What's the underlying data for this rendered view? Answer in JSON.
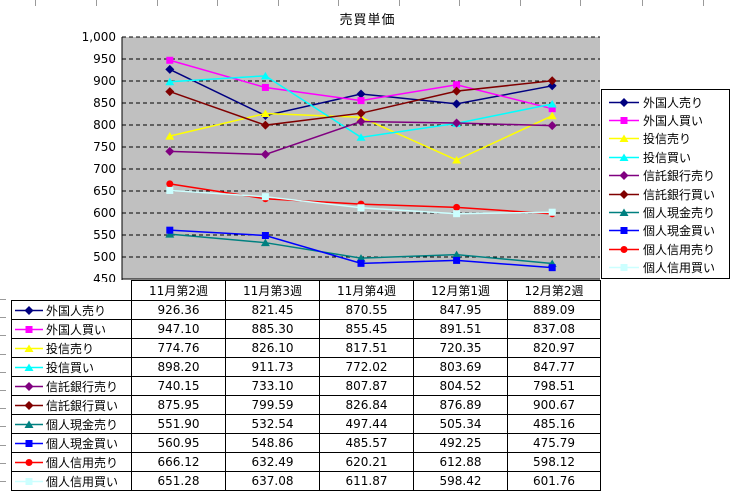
{
  "chart_data": {
    "type": "line",
    "title": "売買単価",
    "categories": [
      "11月第2週",
      "11月第3週",
      "11月第4週",
      "12月第1週",
      "12月第2週"
    ],
    "series": [
      {
        "name": "外国人売り",
        "color": "#000080",
        "marker": "diamond",
        "values": [
          926.36,
          821.45,
          870.55,
          847.95,
          889.09
        ],
        "values_text": [
          "926.36",
          "821.45",
          "870.55",
          "847.95",
          "889.09"
        ]
      },
      {
        "name": "外国人買い",
        "color": "#FF00FF",
        "marker": "square",
        "values": [
          947.1,
          885.3,
          855.45,
          891.51,
          837.08
        ],
        "values_text": [
          "947.10",
          "885.30",
          "855.45",
          "891.51",
          "837.08"
        ]
      },
      {
        "name": "投信売り",
        "color": "#FFFF00",
        "marker": "triangle",
        "values": [
          774.76,
          826.1,
          817.51,
          720.35,
          820.97
        ],
        "values_text": [
          "774.76",
          "826.10",
          "817.51",
          "720.35",
          "820.97"
        ]
      },
      {
        "name": "投信買い",
        "color": "#00FFFF",
        "marker": "triangle",
        "values": [
          898.2,
          911.73,
          772.02,
          803.69,
          847.77
        ],
        "values_text": [
          "898.20",
          "911.73",
          "772.02",
          "803.69",
          "847.77"
        ]
      },
      {
        "name": "信託銀行売り",
        "color": "#800080",
        "marker": "diamond",
        "values": [
          740.15,
          733.1,
          807.87,
          804.52,
          798.51
        ],
        "values_text": [
          "740.15",
          "733.10",
          "807.87",
          "804.52",
          "798.51"
        ]
      },
      {
        "name": "信託銀行買い",
        "color": "#800000",
        "marker": "diamond",
        "values": [
          875.95,
          799.59,
          826.84,
          876.89,
          900.67
        ],
        "values_text": [
          "875.95",
          "799.59",
          "826.84",
          "876.89",
          "900.67"
        ]
      },
      {
        "name": "個人現金売り",
        "color": "#008080",
        "marker": "triangle",
        "values": [
          551.9,
          532.54,
          497.44,
          505.34,
          485.16
        ],
        "values_text": [
          "551.90",
          "532.54",
          "497.44",
          "505.34",
          "485.16"
        ]
      },
      {
        "name": "個人現金買い",
        "color": "#0000FF",
        "marker": "square",
        "values": [
          560.95,
          548.86,
          485.57,
          492.25,
          475.79
        ],
        "values_text": [
          "560.95",
          "548.86",
          "485.57",
          "492.25",
          "475.79"
        ]
      },
      {
        "name": "個人信用売り",
        "color": "#FF0000",
        "marker": "circle",
        "values": [
          666.12,
          632.49,
          620.21,
          612.88,
          598.12
        ],
        "values_text": [
          "666.12",
          "632.49",
          "620.21",
          "612.88",
          "598.12"
        ]
      },
      {
        "name": "個人信用買い",
        "color": "#CCFFFF",
        "marker": "square",
        "values": [
          651.28,
          637.08,
          611.87,
          598.42,
          601.76
        ],
        "values_text": [
          "651.28",
          "637.08",
          "611.87",
          "598.42",
          "601.76"
        ]
      }
    ],
    "y_axis": {
      "min": 450,
      "max": 1000,
      "step": 50,
      "tick_labels": [
        "1,000",
        "950",
        "900",
        "850",
        "800",
        "750",
        "700",
        "650",
        "600",
        "550",
        "500",
        "450"
      ]
    },
    "grid": "horizontal-dashed",
    "legend_position": "right",
    "plot_background": "#C0C0C0",
    "data_table_shown": true
  }
}
